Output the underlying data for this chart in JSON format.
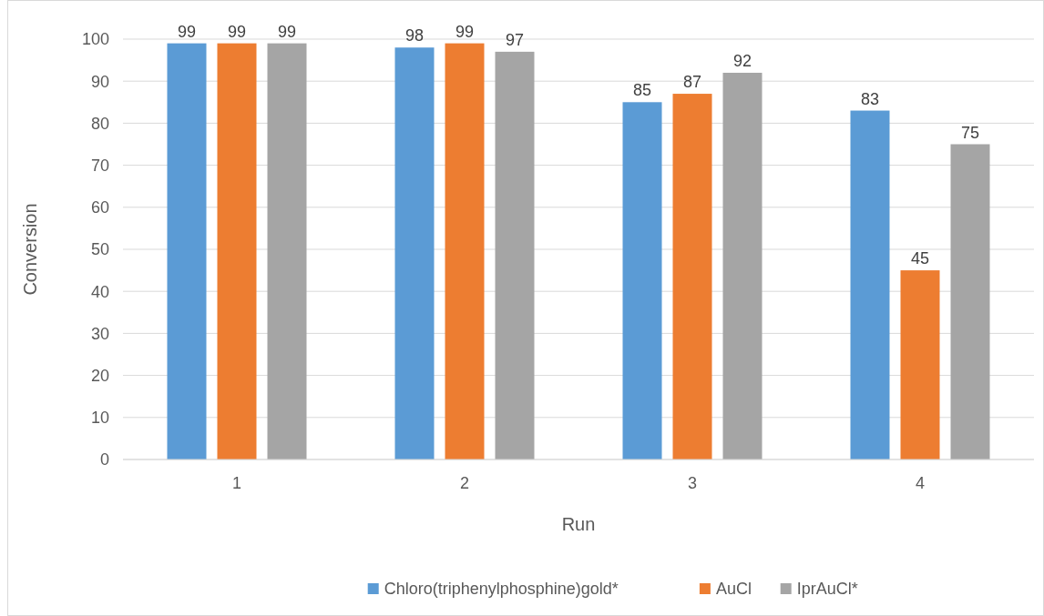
{
  "chart_data": {
    "type": "bar",
    "xlabel": "Run",
    "ylabel": "Conversion",
    "categories": [
      "1",
      "2",
      "3",
      "4"
    ],
    "series": [
      {
        "name": "Chloro(triphenylphosphine)gold*",
        "color": "#5b9bd5",
        "values": [
          99,
          98,
          85,
          83
        ]
      },
      {
        "name": "AuCl",
        "color": "#ed7d31",
        "values": [
          99,
          99,
          87,
          45
        ]
      },
      {
        "name": "IprAuCl*",
        "color": "#a5a5a5",
        "values": [
          99,
          97,
          92,
          75
        ]
      }
    ],
    "ylim": [
      0,
      100
    ],
    "yticks": [
      0,
      10,
      20,
      30,
      40,
      50,
      60,
      70,
      80,
      90,
      100
    ],
    "grid": "y",
    "legend": "bottom",
    "data_labels": true
  }
}
